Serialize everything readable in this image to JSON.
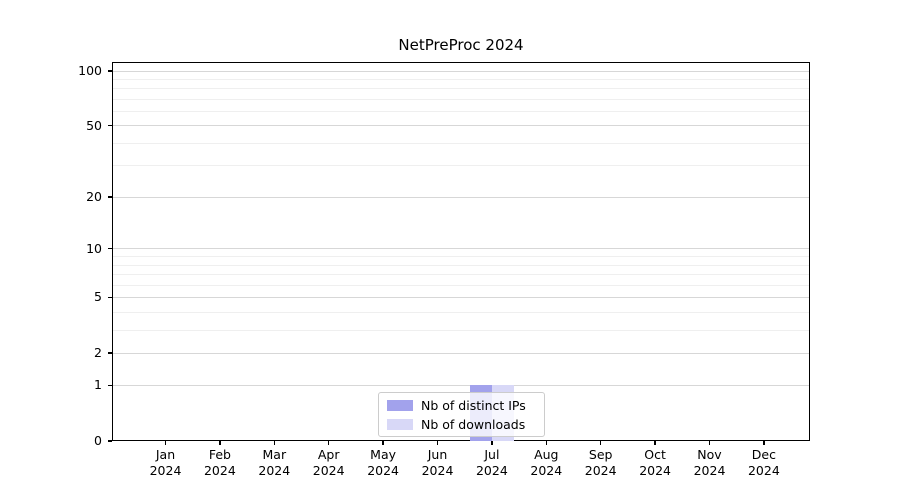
{
  "title": "NetPreProc 2024",
  "chart_data": {
    "type": "bar",
    "title": "NetPreProc 2024",
    "categories": [
      "Jan",
      "Feb",
      "Mar",
      "Apr",
      "May",
      "Jun",
      "Jul",
      "Aug",
      "Sep",
      "Oct",
      "Nov",
      "Dec"
    ],
    "category_year": "2024",
    "series": [
      {
        "name": "Nb of distinct IPs",
        "color": "#a2a2ec",
        "values": [
          0,
          0,
          0,
          0,
          0,
          0,
          1,
          0,
          0,
          0,
          0,
          0
        ]
      },
      {
        "name": "Nb of downloads",
        "color": "#d8d8f7",
        "values": [
          0,
          0,
          0,
          0,
          0,
          0,
          1,
          0,
          0,
          0,
          0,
          0
        ]
      }
    ],
    "yscale": "log1p",
    "ylim": [
      0,
      112
    ],
    "y_major_ticks": [
      100,
      50,
      20,
      10,
      5,
      2,
      1,
      0
    ],
    "y_minor_ticks": [
      3,
      4,
      6,
      7,
      8,
      9,
      30,
      40,
      60,
      70,
      80,
      90
    ],
    "grid": true,
    "legend_position": "lower center"
  },
  "colors": {
    "spine": "#000000",
    "grid_major": "#d7d7d7",
    "grid_minor": "#efefef",
    "legend_border": "#cccccc"
  }
}
